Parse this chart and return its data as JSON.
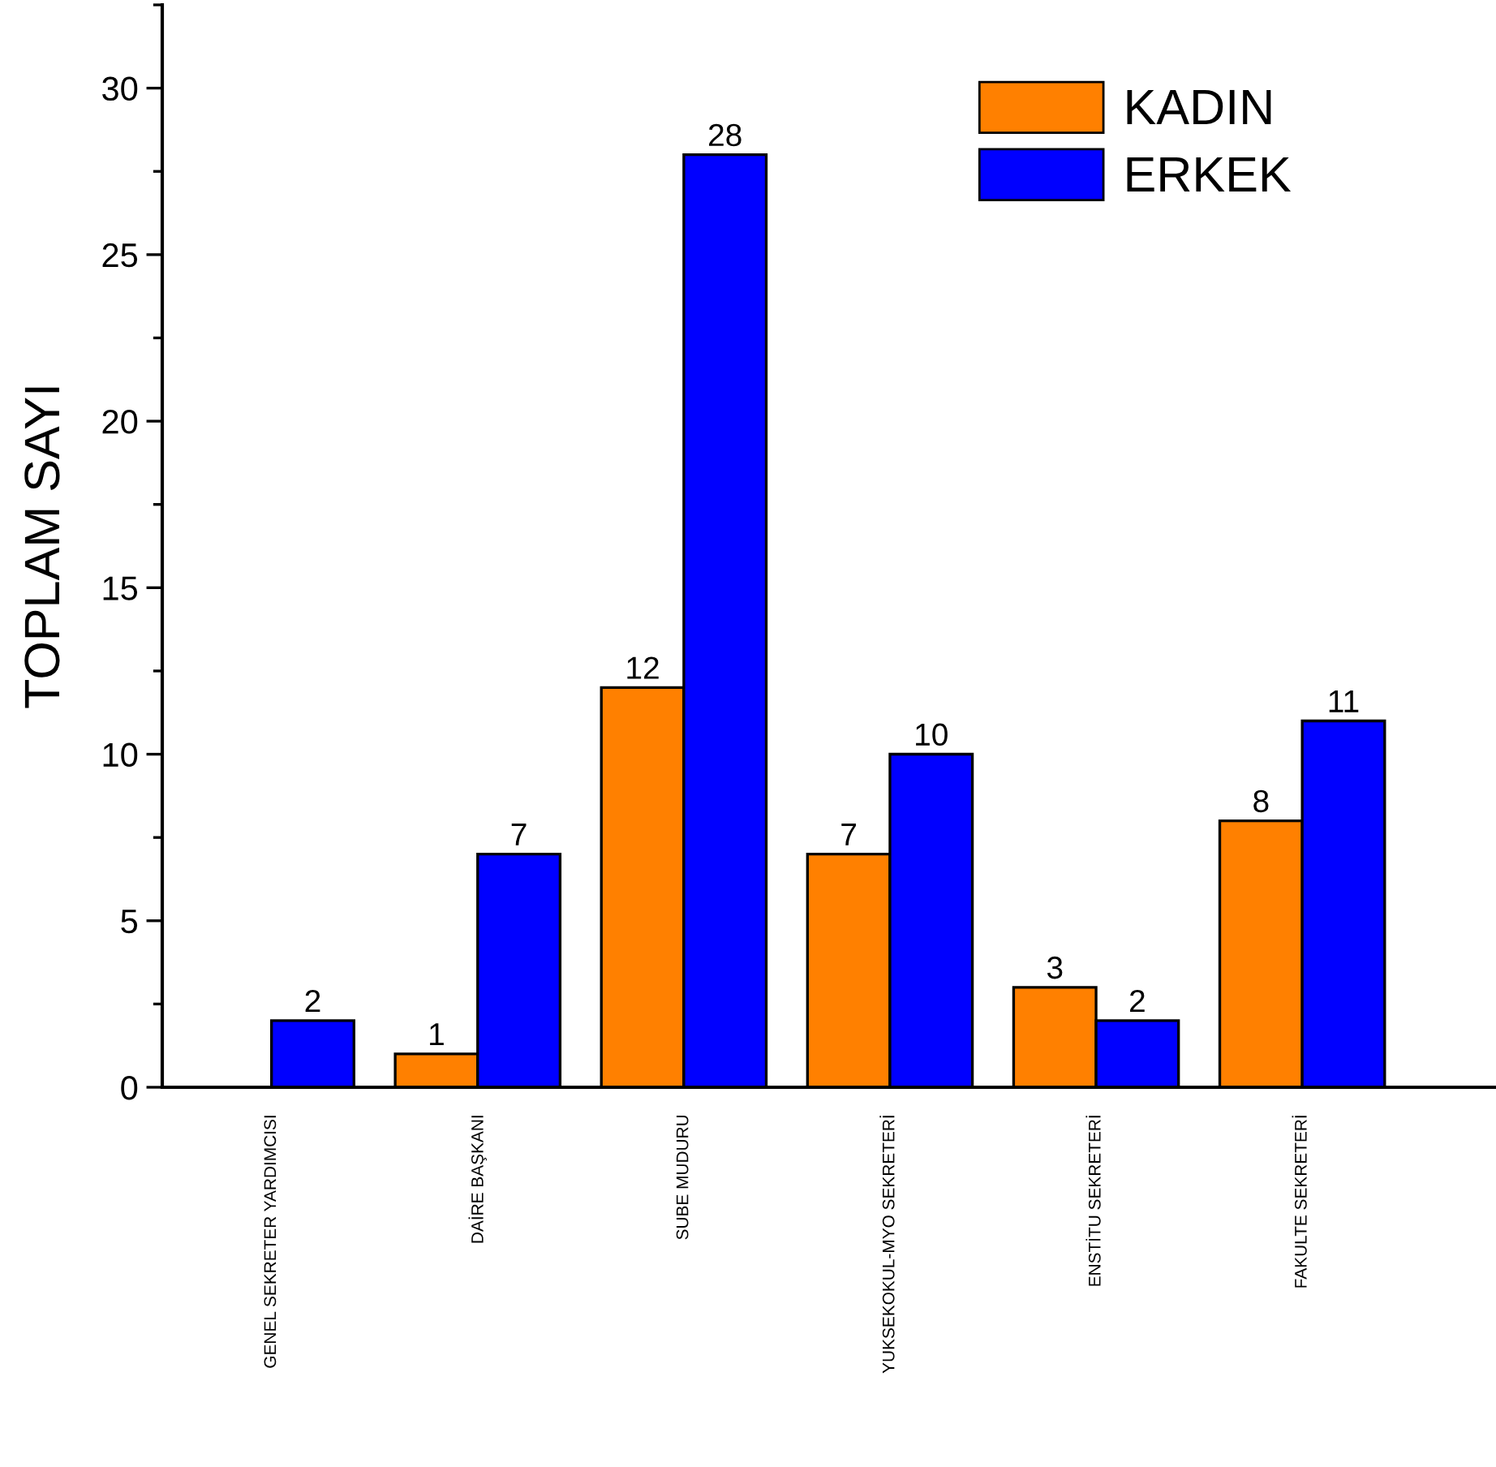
{
  "chart_data": {
    "type": "bar",
    "ylabel": "TOPLAM SAYI",
    "categories": [
      "GENEL SEKRETER YARDIMCISI",
      "DAİRE BAŞKANI",
      "SUBE MUDURU",
      "YUKSEKOKUL-MYO SEKRETERİ",
      "ENSTİTU SEKRETERİ",
      "FAKULTE SEKRETERİ"
    ],
    "series": [
      {
        "name": "KADIN",
        "color": "#ff8000",
        "values": [
          null,
          1,
          12,
          7,
          3,
          8
        ]
      },
      {
        "name": "ERKEK",
        "color": "#0000ff",
        "values": [
          2,
          7,
          28,
          10,
          2,
          11
        ]
      }
    ],
    "ylim": [
      0,
      32.5
    ],
    "yticks": [
      0,
      5,
      10,
      15,
      20,
      25,
      30
    ],
    "data_labels": true,
    "legend": "top right",
    "grid": false
  }
}
